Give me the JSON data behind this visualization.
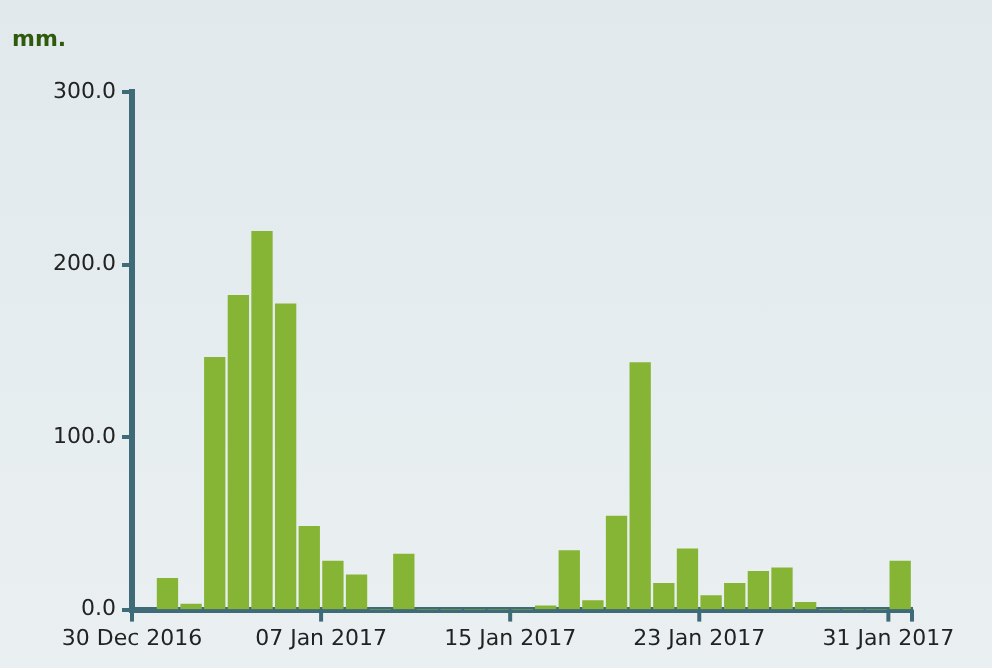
{
  "chart_data": {
    "type": "bar",
    "ylabel": "mm.",
    "color": "#86b535",
    "x": [
      "2016-12-31T12:00",
      "2017-01-01T12:00",
      "2017-01-02T12:00",
      "2017-01-03T12:00",
      "2017-01-04T12:00",
      "2017-01-05T12:00",
      "2017-01-06T12:00",
      "2017-01-07T12:00",
      "2017-01-08T12:00",
      "2017-01-09T12:00",
      "2017-01-10T12:00",
      "2017-01-11T12:00",
      "2017-01-12T12:00",
      "2017-01-13T12:00",
      "2017-01-14T12:00",
      "2017-01-15T12:00",
      "2017-01-16T12:00",
      "2017-01-17T12:00",
      "2017-01-18T12:00",
      "2017-01-19T12:00",
      "2017-01-20T12:00",
      "2017-01-21T12:00",
      "2017-01-22T12:00",
      "2017-01-23T12:00",
      "2017-01-24T12:00",
      "2017-01-25T12:00",
      "2017-01-26T12:00",
      "2017-01-27T12:00",
      "2017-01-28T12:00",
      "2017-01-29T12:00",
      "2017-01-30T12:00",
      "2017-01-31T12:00"
    ],
    "values": [
      18,
      3,
      146,
      182,
      219,
      177,
      48,
      28,
      20,
      0,
      32,
      0,
      0,
      0,
      0,
      0,
      2,
      34,
      5,
      54,
      143,
      15,
      35,
      8,
      15,
      22,
      24,
      4,
      0,
      0,
      0,
      28
    ],
    "xlim": [
      "2016-12-30",
      "2017-02-01"
    ],
    "xticks": [
      {
        "value": "2016-12-30",
        "label": "30 Dec 2016"
      },
      {
        "value": "2017-01-07",
        "label": "07 Jan 2017"
      },
      {
        "value": "2017-01-15",
        "label": "15 Jan 2017"
      },
      {
        "value": "2017-01-23",
        "label": "23 Jan 2017"
      },
      {
        "value": "2017-01-31",
        "label": "31 Jan 2017"
      },
      {
        "value": "2017-02-01",
        "label": null
      }
    ],
    "ylim": [
      0,
      300
    ],
    "yticks": [
      {
        "value": 0,
        "label": "0.0"
      },
      {
        "value": 100,
        "label": "100.0"
      },
      {
        "value": 200,
        "label": "200.0"
      },
      {
        "value": 300,
        "label": "300.0"
      }
    ],
    "grid": false,
    "legend": false
  }
}
